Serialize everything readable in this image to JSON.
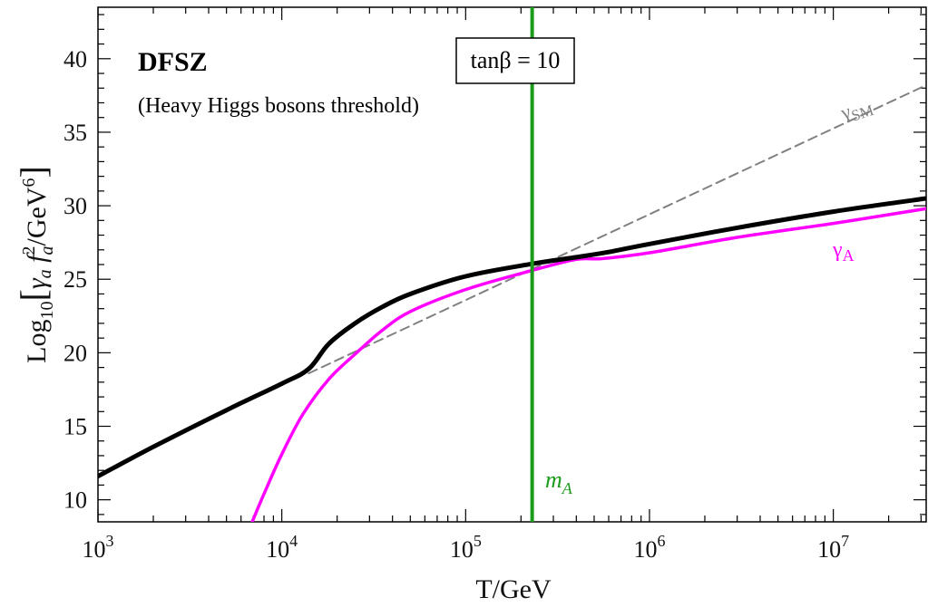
{
  "chart_data": {
    "type": "line",
    "x_scale": "log",
    "xlabel": "T/GeV",
    "ylabel": "Log10[γa fa^2/GeV^6]",
    "xlim": [
      1000,
      32000000
    ],
    "ylim": [
      8.5,
      43.5
    ],
    "x_ticks": [
      {
        "value": 1000,
        "base": "10",
        "exp": "3"
      },
      {
        "value": 10000,
        "base": "10",
        "exp": "4"
      },
      {
        "value": 100000,
        "base": "10",
        "exp": "5"
      },
      {
        "value": 1000000,
        "base": "10",
        "exp": "6"
      },
      {
        "value": 10000000,
        "base": "10",
        "exp": "7"
      }
    ],
    "y_ticks": [
      10,
      15,
      20,
      25,
      30,
      35,
      40
    ],
    "grid": false,
    "annotations": {
      "model": "DFSZ",
      "subtitle": "(Heavy Higgs bosons threshold)",
      "tanbeta": "tanβ = 10",
      "mA_label": "m",
      "mA_sub": "A",
      "gammaA_label": "γ",
      "gammaA_sub": "A",
      "gammaSM_label": "γ",
      "gammaSM_sub": "SM"
    },
    "vertical_line": {
      "name": "mA",
      "x": 230000,
      "color": "#1a9b1a"
    },
    "series": [
      {
        "key": "total",
        "color": "#000000",
        "points": [
          [
            1000,
            11.6
          ],
          [
            2000,
            13.6
          ],
          [
            5000,
            16.1
          ],
          [
            10000,
            17.9
          ],
          [
            14000,
            18.9
          ],
          [
            18000,
            20.6
          ],
          [
            25000,
            22.0
          ],
          [
            35000,
            23.1
          ],
          [
            50000,
            24.0
          ],
          [
            100000,
            25.2
          ],
          [
            230000,
            26.05
          ],
          [
            400000,
            26.5
          ],
          [
            600000,
            26.85
          ],
          [
            1000000,
            27.4
          ],
          [
            3000000,
            28.5
          ],
          [
            10000000,
            29.6
          ],
          [
            32000000,
            30.5
          ]
        ]
      },
      {
        "key": "gammaA",
        "color": "#ff00ff",
        "points": [
          [
            6900,
            8.5
          ],
          [
            8000,
            10.4
          ],
          [
            10000,
            13.1
          ],
          [
            13000,
            15.8
          ],
          [
            18000,
            18.2
          ],
          [
            25000,
            19.9
          ],
          [
            35000,
            21.5
          ],
          [
            50000,
            22.8
          ],
          [
            100000,
            24.3
          ],
          [
            230000,
            25.6
          ],
          [
            400000,
            26.35
          ],
          [
            550000,
            26.4
          ],
          [
            1000000,
            26.8
          ],
          [
            3000000,
            27.85
          ],
          [
            10000000,
            28.8
          ],
          [
            32000000,
            29.8
          ]
        ]
      },
      {
        "key": "gammaSM",
        "color": "#808080",
        "dashed": true,
        "points": [
          [
            14000,
            18.6
          ],
          [
            32000000,
            38.2
          ]
        ]
      }
    ]
  }
}
